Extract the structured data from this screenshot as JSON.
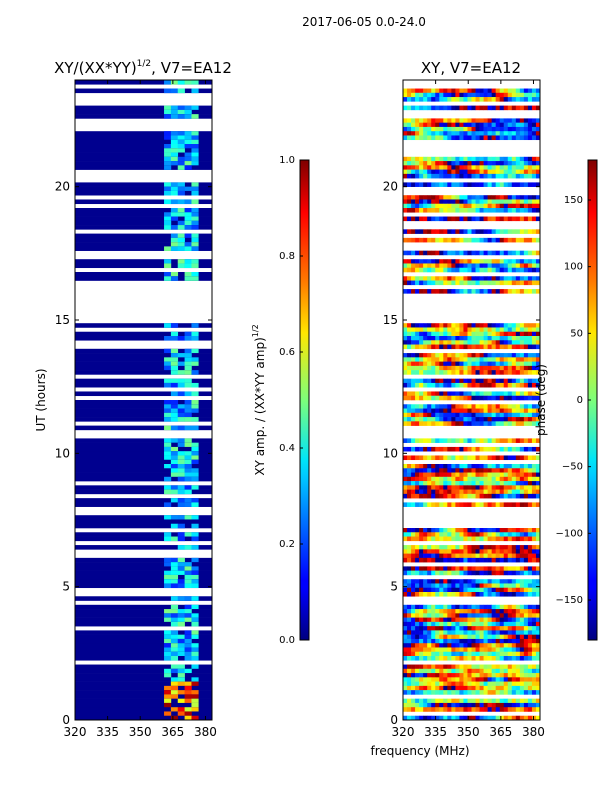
{
  "suptitle": "2017-06-05 0.0-24.0",
  "shared_xlabel": "frequency (MHz)",
  "chart_data": [
    {
      "type": "heatmap",
      "title": "XY/(XX*YY)",
      "title_superscript": "1/2",
      "title_suffix": ", V7=EA12",
      "xlabel": "",
      "ylabel": "UT (hours)",
      "x_ticks": [
        320,
        335,
        350,
        365,
        380
      ],
      "y_ticks": [
        0,
        5,
        10,
        15,
        20
      ],
      "xlim": [
        320,
        383
      ],
      "ylim": [
        0,
        24
      ],
      "colorbar": {
        "label": "XY amp. / (XX*YY amp)",
        "label_superscript": "1/2",
        "ticks": [
          "0.0",
          "0.2",
          "0.4",
          "0.6",
          "0.8",
          "1.0"
        ],
        "range": [
          0.0,
          1.0
        ],
        "colormap": "jet"
      },
      "bright_band_mhz": [
        360,
        378
      ],
      "gap_hours": [
        [
          14.8,
          16.0
        ]
      ]
    },
    {
      "type": "heatmap",
      "title": "XY, V7=EA12",
      "xlabel": "frequency (MHz)",
      "ylabel": "",
      "x_ticks": [
        320,
        335,
        350,
        365,
        380
      ],
      "y_ticks": [
        0,
        5,
        10,
        15,
        20
      ],
      "xlim": [
        320,
        383
      ],
      "ylim": [
        0,
        24
      ],
      "colorbar": {
        "label": "phase (deg)",
        "ticks": [
          "150",
          "100",
          "50",
          "0",
          "−50",
          "−100",
          "−150"
        ],
        "range": [
          -180,
          180
        ],
        "colormap": "jet"
      },
      "gap_hours": [
        [
          14.8,
          16.0
        ]
      ]
    }
  ]
}
